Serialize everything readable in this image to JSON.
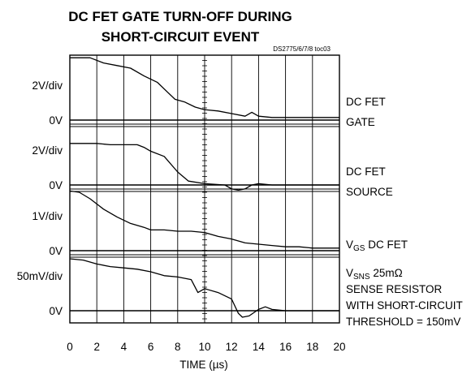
{
  "title": [
    "DC FET GATE TURN-OFF DURING",
    "SHORT-CIRCUIT EVENT"
  ],
  "doc_id": "DS2775/6/7/8 toc03",
  "chart_data": {
    "type": "line",
    "title": "DC FET GATE TURN-OFF DURING SHORT-CIRCUIT EVENT",
    "xlabel": "TIME (µs)",
    "x_ticks": [
      "0",
      "2",
      "4",
      "6",
      "8",
      "10",
      "12",
      "14",
      "16",
      "18",
      "20"
    ],
    "xlim": [
      0,
      20
    ],
    "grid": true,
    "series": [
      {
        "scale_label": "2V/div",
        "zero_label": "0V",
        "name_lines": [
          {
            "text": "DC FET"
          },
          {
            "text": "GATE"
          }
        ],
        "x": [
          0,
          1.5,
          2.5,
          3.5,
          4.5,
          5.5,
          6.5,
          7.2,
          7.8,
          8.5,
          9.3,
          10.0,
          11.0,
          12.0,
          13.0,
          13.5,
          14.0,
          15.0,
          17.0,
          20.0
        ],
        "y": [
          2.4,
          2.4,
          2.2,
          2.1,
          2.0,
          1.7,
          1.45,
          1.1,
          0.8,
          0.7,
          0.5,
          0.4,
          0.35,
          0.25,
          0.15,
          0.3,
          0.15,
          0.1,
          0.1,
          0.1
        ]
      },
      {
        "scale_label": "2V/div",
        "zero_label": "0V",
        "name_lines": [
          {
            "text": "DC FET"
          },
          {
            "text": "SOURCE"
          }
        ],
        "x": [
          0,
          2.0,
          3.0,
          5.0,
          5.5,
          6.0,
          7.0,
          8.0,
          8.8,
          10.0,
          11.5,
          12.0,
          12.5,
          13.0,
          13.5,
          14.0,
          15.0,
          20.0
        ],
        "y": [
          1.6,
          1.6,
          1.55,
          1.55,
          1.45,
          1.3,
          1.1,
          0.5,
          0.15,
          0.05,
          0.0,
          -0.15,
          -0.2,
          -0.15,
          0.0,
          0.05,
          0.0,
          0.0
        ]
      },
      {
        "scale_label": "1V/div",
        "zero_label": "0V",
        "name_lines": [
          {
            "text": "V",
            "sub": "GS",
            "rest": " DC FET"
          }
        ],
        "x": [
          0,
          0.7,
          1.5,
          2.5,
          3.5,
          4.5,
          5.5,
          6.0,
          7.0,
          8.0,
          9.0,
          10.0,
          11.0,
          12.0,
          13.0,
          14.0,
          15.0,
          16.0,
          17.0,
          18.0,
          20.0
        ],
        "y": [
          2.3,
          2.25,
          2.0,
          1.6,
          1.3,
          1.05,
          0.9,
          0.8,
          0.8,
          0.75,
          0.75,
          0.7,
          0.55,
          0.45,
          0.3,
          0.25,
          0.2,
          0.15,
          0.15,
          0.1,
          0.1
        ]
      },
      {
        "scale_label": "50mV/div",
        "zero_label": "0V",
        "name_lines": [
          {
            "text": "V",
            "sub": "SNS",
            "rest": " 25mΩ"
          },
          {
            "text": "SENSE RESISTOR"
          },
          {
            "text": "WITH SHORT-CIRCUIT"
          },
          {
            "text": "THRESHOLD = 150mV"
          }
        ],
        "x": [
          0,
          1.0,
          2.0,
          3.0,
          4.0,
          5.0,
          6.0,
          7.0,
          8.0,
          9.0,
          9.5,
          10.0,
          11.0,
          12.0,
          12.5,
          12.8,
          13.3,
          14.0,
          14.5,
          15.0,
          16.0,
          20.0
        ],
        "y": [
          2.0,
          1.95,
          1.8,
          1.7,
          1.65,
          1.6,
          1.5,
          1.35,
          1.3,
          1.2,
          0.7,
          0.85,
          0.7,
          0.45,
          -0.1,
          -0.25,
          -0.2,
          0.05,
          0.15,
          0.05,
          0.0,
          0.0
        ]
      }
    ]
  }
}
